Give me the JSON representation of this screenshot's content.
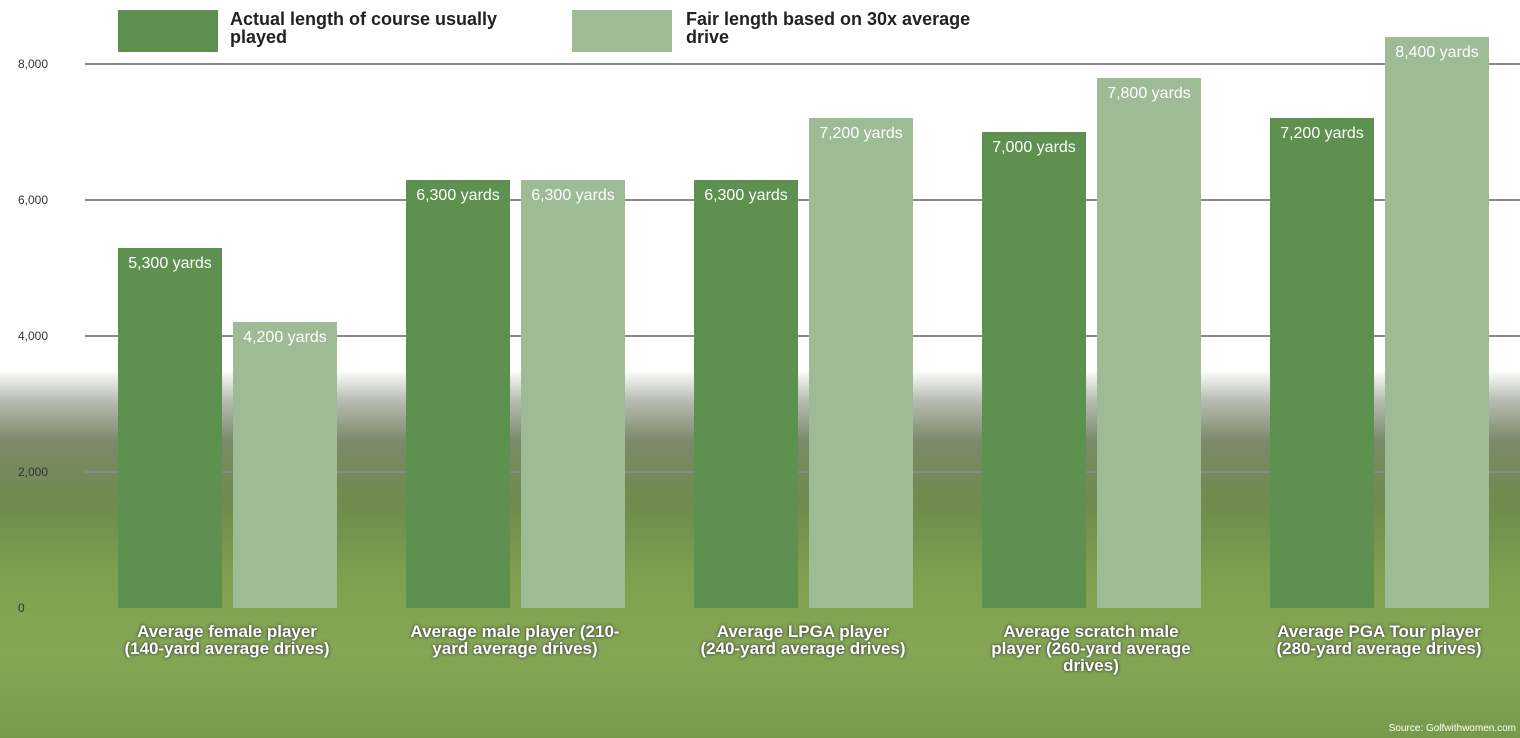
{
  "chart_data": {
    "type": "bar",
    "categories": [
      "Average female player (140-yard average drives)",
      "Average male player (210-yard average drives)",
      "Average LPGA player (240-yard average drives)",
      "Average scratch male player (260-yard average drives)",
      "Average PGA Tour player (280-yard average drives)"
    ],
    "series": [
      {
        "name": "Actual length of course usually played",
        "color": "#5e9150",
        "values": [
          5300,
          6300,
          6300,
          7000,
          7200
        ],
        "value_labels": [
          "5,300 yards",
          "6,300 yards",
          "6,300 yards",
          "7,000 yards",
          "7,200 yards"
        ]
      },
      {
        "name": "Fair length based on 30x average drive",
        "color": "#9dbb94",
        "values": [
          4200,
          6300,
          7200,
          7800,
          8400
        ],
        "value_labels": [
          "4,200 yards",
          "6,300 yards",
          "7,200 yards",
          "7,800 yards",
          "8,400 yards"
        ]
      }
    ],
    "ylim": [
      0,
      8000
    ],
    "yticks": [
      0,
      {
        "value": 2000,
        "label": "2,000"
      },
      {
        "value": 4000,
        "label": "4,000"
      },
      {
        "value": 6000,
        "label": "6,000"
      },
      {
        "value": 8000,
        "label": "8,000"
      }
    ],
    "grid": true,
    "source": "Source: Golfwithwomen.com"
  }
}
